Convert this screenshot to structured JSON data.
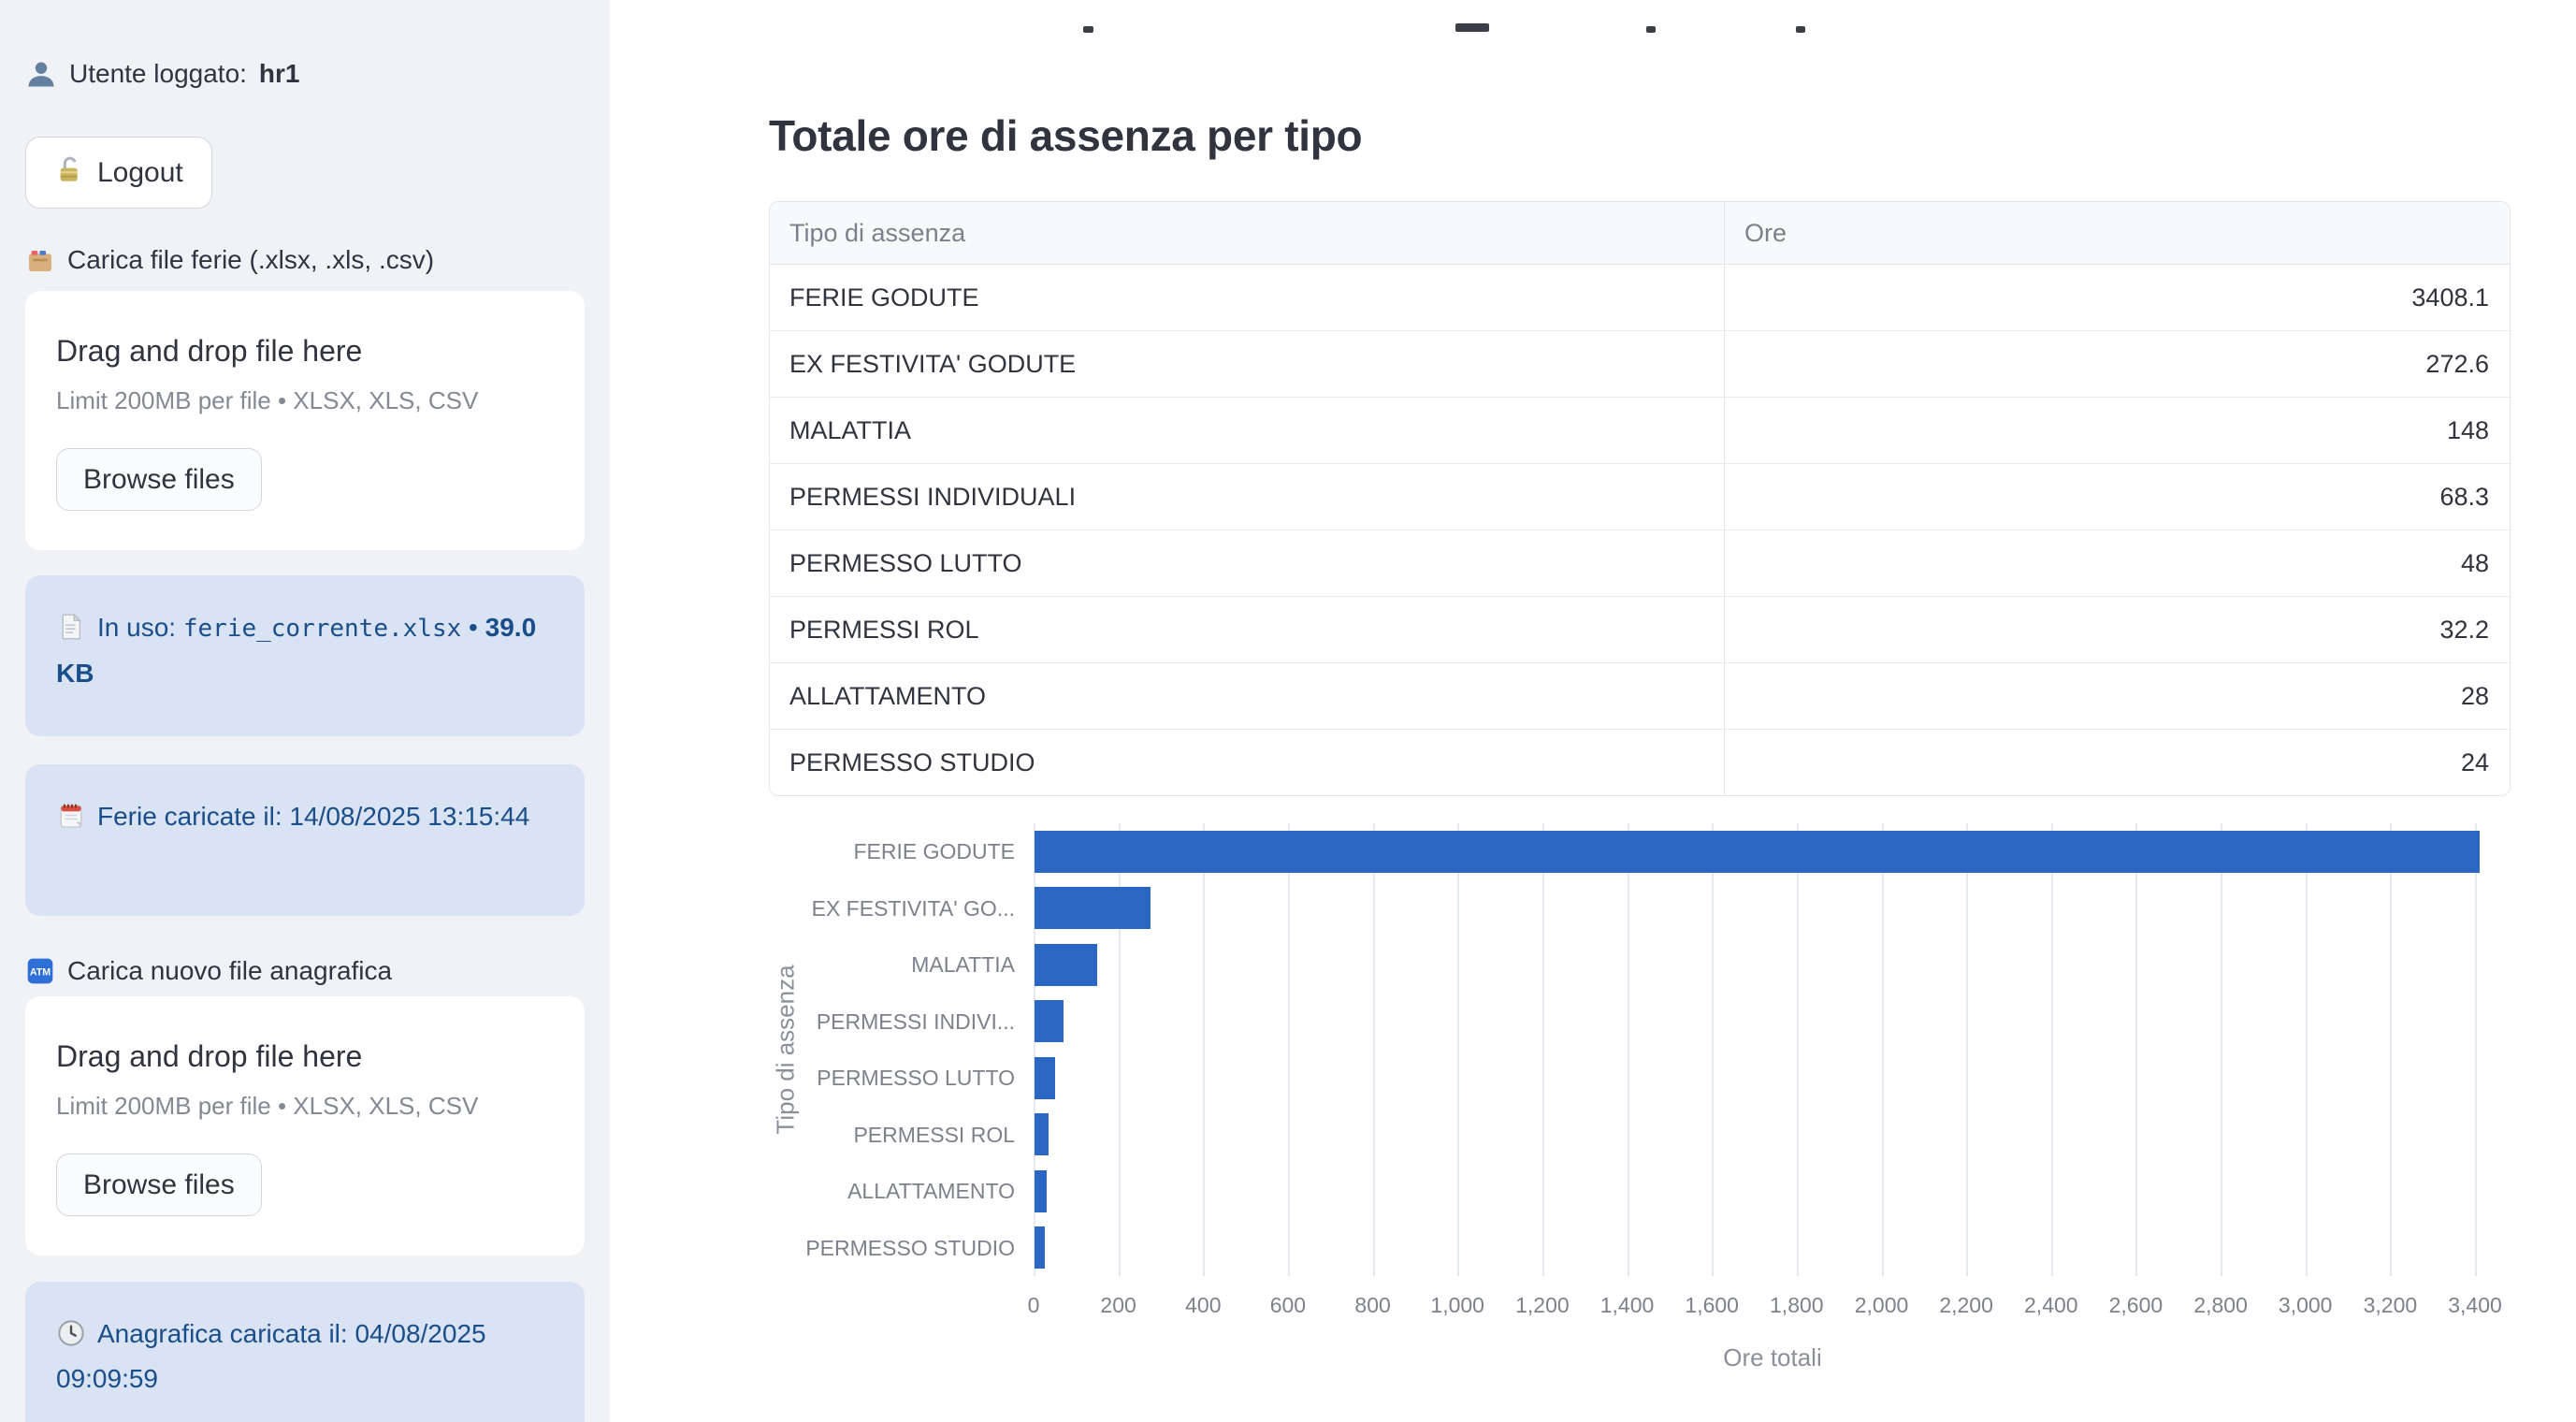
{
  "colors": {
    "sidebar_bg": "#f0f2f6",
    "info_box_bg": "#d9e3f3",
    "info_box_text": "#1a4e89",
    "bar_blue": "#2b66c2",
    "text_dark": "#31333f",
    "muted_gray": "#7d818c"
  },
  "icons": {
    "user": "bust-in-silhouette",
    "logout": "open-padlock",
    "ferie_upload": "card-file-box",
    "in_use_file": "page-document",
    "ferie_loaded": "tear-off-calendar",
    "anagrafica_upload": "atm-sign",
    "anagrafica_loaded": "clock-face"
  },
  "sidebar": {
    "user_label": "Utente loggato:",
    "user_name": "hr1",
    "logout_label": "Logout",
    "ferie_upload_label": "Carica file ferie (.xlsx, .xls, .csv)",
    "anagrafica_upload_label": "Carica nuovo file anagrafica",
    "dropzone": {
      "title": "Drag and drop file here",
      "limit": "Limit 200MB per file • XLSX, XLS, CSV",
      "browse_label": "Browse files"
    },
    "in_use": {
      "prefix": "In uso:",
      "filename": "ferie_corrente.xlsx",
      "separator": "•",
      "size": "39.0 KB"
    },
    "ferie_loaded_text": "Ferie caricate il: 14/08/2025 13:15:44",
    "anagrafica_loaded_text": "Anagrafica caricata il: 04/08/2025 09:09:59"
  },
  "main": {
    "title": "Totale ore di assenza per tipo",
    "table": {
      "columns": [
        "Tipo di assenza",
        "Ore"
      ],
      "rows": [
        [
          "FERIE GODUTE",
          "3408.1"
        ],
        [
          "EX FESTIVITA' GODUTE",
          "272.6"
        ],
        [
          "MALATTIA",
          "148"
        ],
        [
          "PERMESSI INDIVIDUALI",
          "68.3"
        ],
        [
          "PERMESSO LUTTO",
          "48"
        ],
        [
          "PERMESSI ROL",
          "32.2"
        ],
        [
          "ALLATTAMENTO",
          "28"
        ],
        [
          "PERMESSO STUDIO",
          "24"
        ]
      ]
    }
  },
  "chart_data": {
    "type": "bar",
    "orientation": "horizontal",
    "title": "",
    "xlabel": "Ore totali",
    "ylabel": "Tipo di assenza",
    "categories": [
      "FERIE GODUTE",
      "EX FESTIVITA' GODUTE",
      "MALATTIA",
      "PERMESSI INDIVIDUALI",
      "PERMESSO LUTTO",
      "PERMESSI ROL",
      "ALLATTAMENTO",
      "PERMESSO STUDIO"
    ],
    "category_labels_displayed": [
      "FERIE GODUTE",
      "EX FESTIVITA' GO...",
      "MALATTIA",
      "PERMESSI INDIVI...",
      "PERMESSO LUTTO",
      "PERMESSI ROL",
      "ALLATTAMENTO",
      "PERMESSO STUDIO"
    ],
    "values": [
      3408.1,
      272.6,
      148,
      68.3,
      48,
      32.2,
      28,
      24
    ],
    "xlim": [
      0,
      3400
    ],
    "x_tick_values": [
      0,
      200,
      400,
      600,
      800,
      1000,
      1200,
      1400,
      1600,
      1800,
      2000,
      2200,
      2400,
      2600,
      2800,
      3000,
      3200,
      3400
    ],
    "x_tick_labels": [
      "0",
      "200",
      "400",
      "600",
      "800",
      "1,000",
      "1,200",
      "1,400",
      "1,600",
      "1,800",
      "2,000",
      "2,200",
      "2,400",
      "2,600",
      "2,800",
      "3,000",
      "3,200",
      "3,400"
    ],
    "bar_color": "#2b66c2",
    "grid": true,
    "legend": false
  }
}
